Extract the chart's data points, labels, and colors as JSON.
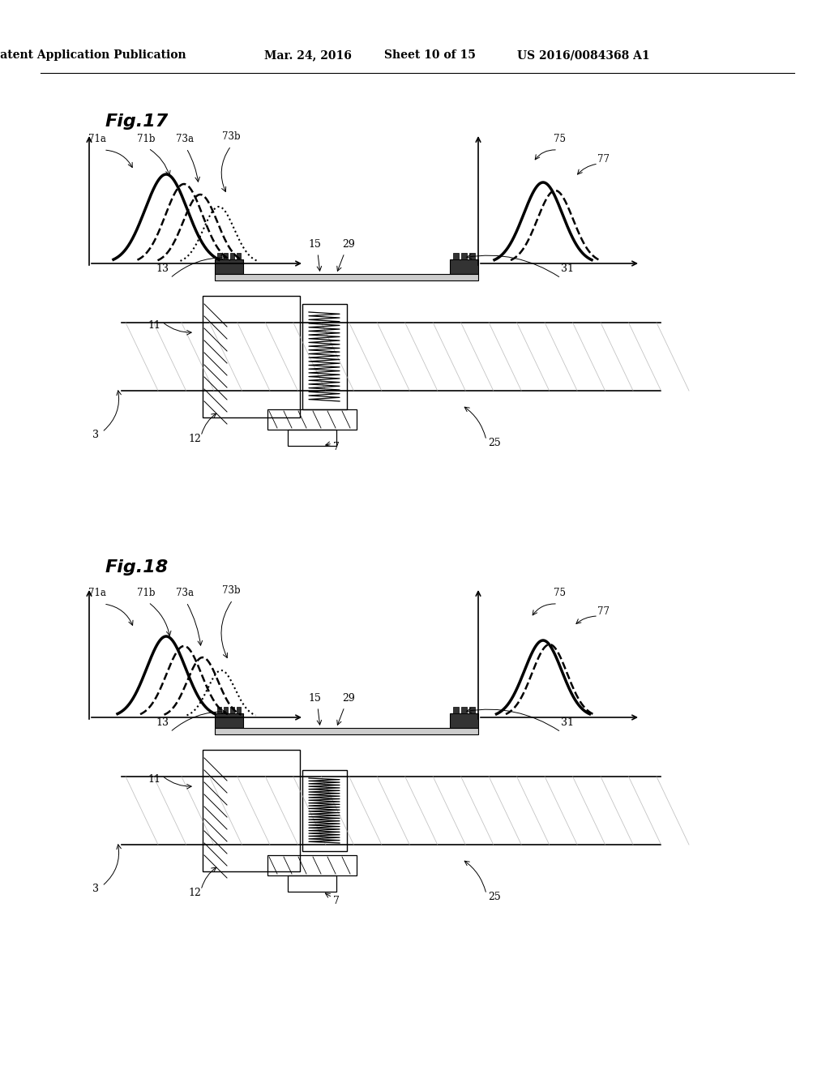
{
  "background_color": "#ffffff",
  "header_text": "Patent Application Publication",
  "header_date": "Mar. 24, 2016",
  "header_sheet": "Sheet 10 of 15",
  "header_patent": "US 2016/0084368 A1",
  "fig17_title": "Fig.17",
  "fig18_title": "Fig.18",
  "fig17_labels": [
    "71a",
    "71b",
    "73a",
    "73b",
    "75",
    "77",
    "13",
    "11",
    "15",
    "29",
    "31",
    "3",
    "12",
    "7",
    "25"
  ],
  "fig18_labels": [
    "71a",
    "71b",
    "73a",
    "73b",
    "75",
    "77",
    "13",
    "11",
    "15",
    "29",
    "31",
    "3",
    "12",
    "7",
    "25"
  ]
}
